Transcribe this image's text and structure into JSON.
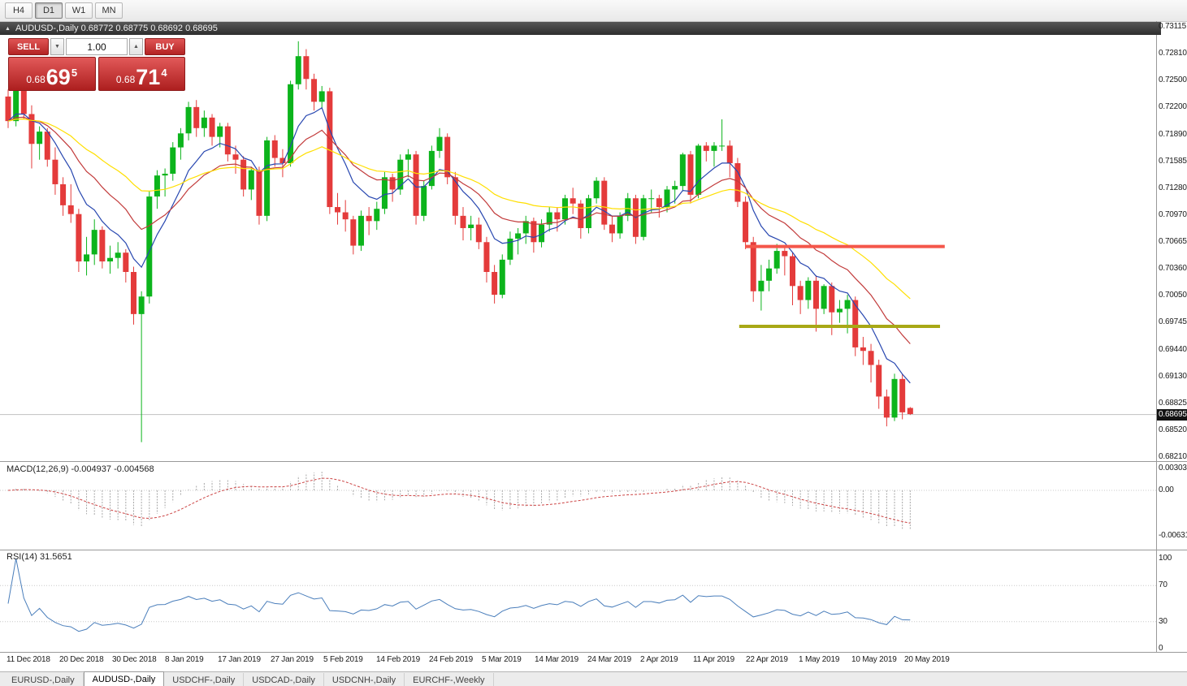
{
  "toolbar": {
    "timeframes": [
      {
        "label": "H4",
        "active": false
      },
      {
        "label": "D1",
        "active": true
      },
      {
        "label": "W1",
        "active": false
      },
      {
        "label": "MN",
        "active": false
      }
    ]
  },
  "chart": {
    "title_text": "AUDUSD-,Daily  0.68772 0.68775 0.68692 0.68695",
    "current_price_label": "0.68695",
    "price_axis": [
      "0.73115",
      "0.72810",
      "0.72500",
      "0.72200",
      "0.71890",
      "0.71585",
      "0.71280",
      "0.70970",
      "0.70665",
      "0.70360",
      "0.70050",
      "0.69745",
      "0.69440",
      "0.69130",
      "0.68825",
      "0.68520",
      "0.68210"
    ]
  },
  "trade_panel": {
    "sell_label": "SELL",
    "buy_label": "BUY",
    "volume": "1.00",
    "spin_down": "▼",
    "spin_up": "▲",
    "sell_price": {
      "prefix": "0.68",
      "big": "69",
      "sup": "5"
    },
    "buy_price": {
      "prefix": "0.68",
      "big": "71",
      "sup": "4"
    }
  },
  "colors": {
    "candle_up": "#0cb41c",
    "candle_down": "#e43b3b",
    "ma_fast_blue": "#2847b0",
    "ma_mid_red": "#c23b3b",
    "ma_slow_yellow": "#ffdf00",
    "resistance": "#f4564a",
    "support": "#a8a816",
    "macd_signal": "#cc4444",
    "macd_histogram": "#a8a8a8",
    "rsi_line": "#4a7ebb",
    "price_line": "#c0c0c0",
    "badge_bg": "#121212"
  },
  "tabs": [
    {
      "label": "EURUSD-,Daily",
      "active": false
    },
    {
      "label": "AUDUSD-,Daily",
      "active": true
    },
    {
      "label": "USDCHF-,Daily",
      "active": false
    },
    {
      "label": "USDCAD-,Daily",
      "active": false
    },
    {
      "label": "USDCNH-,Daily",
      "active": false
    },
    {
      "label": "EURCHF-,Weekly",
      "active": false
    }
  ],
  "chart_data": {
    "type": "candlestick",
    "symbol": "AUDUSD-",
    "timeframe": "Daily",
    "ohlc_display": {
      "open": "0.68772",
      "high": "0.68775",
      "low": "0.68692",
      "close": "0.68695"
    },
    "current_price": 0.68695,
    "ylim": [
      0.6821,
      0.73115
    ],
    "x_labels": [
      "11 Dec 2018",
      "20 Dec 2018",
      "30 Dec 2018",
      "8 Jan 2019",
      "17 Jan 2019",
      "27 Jan 2019",
      "5 Feb 2019",
      "14 Feb 2019",
      "24 Feb 2019",
      "5 Mar 2019",
      "14 Mar 2019",
      "24 Mar 2019",
      "2 Apr 2019",
      "11 Apr 2019",
      "22 Apr 2019",
      "1 May 2019",
      "10 May 2019",
      "20 May 2019"
    ],
    "candles": [
      [
        0.7232,
        0.724,
        0.7196,
        0.7204
      ],
      [
        0.7204,
        0.7246,
        0.7198,
        0.724
      ],
      [
        0.724,
        0.7244,
        0.7206,
        0.7212
      ],
      [
        0.7212,
        0.7222,
        0.715,
        0.7178
      ],
      [
        0.7178,
        0.7198,
        0.716,
        0.7192
      ],
      [
        0.7192,
        0.7196,
        0.7152,
        0.716
      ],
      [
        0.716,
        0.7174,
        0.712,
        0.7132
      ],
      [
        0.7132,
        0.714,
        0.7096,
        0.7108
      ],
      [
        0.7108,
        0.7132,
        0.7088,
        0.7098
      ],
      [
        0.7098,
        0.7104,
        0.7032,
        0.7044
      ],
      [
        0.7044,
        0.7072,
        0.7028,
        0.7052
      ],
      [
        0.7052,
        0.7092,
        0.704,
        0.708
      ],
      [
        0.708,
        0.7084,
        0.7036,
        0.7044
      ],
      [
        0.7044,
        0.7062,
        0.703,
        0.7048
      ],
      [
        0.7048,
        0.7066,
        0.7036,
        0.7054
      ],
      [
        0.7054,
        0.7058,
        0.702,
        0.7032
      ],
      [
        0.7032,
        0.7038,
        0.6972,
        0.6984
      ],
      [
        0.6984,
        0.701,
        0.6838,
        0.7004
      ],
      [
        0.7004,
        0.7124,
        0.6996,
        0.7118
      ],
      [
        0.7118,
        0.7148,
        0.7104,
        0.7142
      ],
      [
        0.7142,
        0.715,
        0.7118,
        0.7144
      ],
      [
        0.7144,
        0.718,
        0.7136,
        0.7174
      ],
      [
        0.7174,
        0.7196,
        0.716,
        0.719
      ],
      [
        0.719,
        0.7226,
        0.7182,
        0.722
      ],
      [
        0.722,
        0.7228,
        0.7186,
        0.7196
      ],
      [
        0.7196,
        0.7216,
        0.7186,
        0.7208
      ],
      [
        0.7208,
        0.7212,
        0.7176,
        0.7186
      ],
      [
        0.7186,
        0.7202,
        0.7174,
        0.7198
      ],
      [
        0.7198,
        0.7202,
        0.7158,
        0.7166
      ],
      [
        0.7166,
        0.7176,
        0.7144,
        0.716
      ],
      [
        0.716,
        0.7164,
        0.7118,
        0.7126
      ],
      [
        0.7126,
        0.7152,
        0.7114,
        0.7148
      ],
      [
        0.7148,
        0.7152,
        0.7086,
        0.7096
      ],
      [
        0.7096,
        0.7186,
        0.709,
        0.7182
      ],
      [
        0.7182,
        0.7188,
        0.7152,
        0.7162
      ],
      [
        0.7162,
        0.7172,
        0.714,
        0.7156
      ],
      [
        0.7156,
        0.725,
        0.7152,
        0.7246
      ],
      [
        0.7246,
        0.7295,
        0.724,
        0.7278
      ],
      [
        0.7278,
        0.7286,
        0.724,
        0.7252
      ],
      [
        0.7252,
        0.7258,
        0.7216,
        0.7226
      ],
      [
        0.7226,
        0.7244,
        0.7218,
        0.7238
      ],
      [
        0.7238,
        0.7242,
        0.7098,
        0.7106
      ],
      [
        0.7106,
        0.7122,
        0.7086,
        0.71
      ],
      [
        0.71,
        0.7114,
        0.7078,
        0.7092
      ],
      [
        0.7092,
        0.7096,
        0.7052,
        0.7062
      ],
      [
        0.7062,
        0.7102,
        0.7056,
        0.7096
      ],
      [
        0.7096,
        0.7106,
        0.7074,
        0.709
      ],
      [
        0.709,
        0.7112,
        0.708,
        0.7104
      ],
      [
        0.7104,
        0.7146,
        0.7098,
        0.714
      ],
      [
        0.714,
        0.7144,
        0.7112,
        0.7126
      ],
      [
        0.7126,
        0.7166,
        0.712,
        0.716
      ],
      [
        0.716,
        0.7172,
        0.714,
        0.7166
      ],
      [
        0.7166,
        0.717,
        0.7086,
        0.7096
      ],
      [
        0.7096,
        0.7136,
        0.709,
        0.713
      ],
      [
        0.713,
        0.7176,
        0.7126,
        0.717
      ],
      [
        0.717,
        0.7196,
        0.7162,
        0.7186
      ],
      [
        0.7186,
        0.719,
        0.7132,
        0.714
      ],
      [
        0.714,
        0.7146,
        0.7086,
        0.7096
      ],
      [
        0.7096,
        0.7106,
        0.7068,
        0.7082
      ],
      [
        0.7082,
        0.7096,
        0.7068,
        0.7086
      ],
      [
        0.7086,
        0.7094,
        0.7058,
        0.7066
      ],
      [
        0.7066,
        0.7072,
        0.702,
        0.7032
      ],
      [
        0.7032,
        0.704,
        0.6996,
        0.7006
      ],
      [
        0.7006,
        0.7052,
        0.7002,
        0.7046
      ],
      [
        0.7046,
        0.7078,
        0.704,
        0.707
      ],
      [
        0.707,
        0.7082,
        0.7052,
        0.7076
      ],
      [
        0.7076,
        0.7096,
        0.7064,
        0.709
      ],
      [
        0.709,
        0.7094,
        0.7054,
        0.7066
      ],
      [
        0.7066,
        0.7092,
        0.706,
        0.7086
      ],
      [
        0.7086,
        0.7106,
        0.7078,
        0.71
      ],
      [
        0.71,
        0.7106,
        0.7078,
        0.7092
      ],
      [
        0.7092,
        0.712,
        0.7086,
        0.7116
      ],
      [
        0.7116,
        0.7128,
        0.7098,
        0.711
      ],
      [
        0.711,
        0.7114,
        0.707,
        0.7082
      ],
      [
        0.7082,
        0.712,
        0.7076,
        0.7116
      ],
      [
        0.7116,
        0.714,
        0.711,
        0.7136
      ],
      [
        0.7136,
        0.714,
        0.708,
        0.7086
      ],
      [
        0.7086,
        0.7096,
        0.7066,
        0.7076
      ],
      [
        0.7076,
        0.71,
        0.707,
        0.7096
      ],
      [
        0.7096,
        0.7122,
        0.709,
        0.7116
      ],
      [
        0.7116,
        0.712,
        0.7064,
        0.7072
      ],
      [
        0.7072,
        0.712,
        0.7068,
        0.7116
      ],
      [
        0.7116,
        0.7126,
        0.71,
        0.7116
      ],
      [
        0.7116,
        0.712,
        0.7094,
        0.7106
      ],
      [
        0.7106,
        0.713,
        0.71,
        0.7126
      ],
      [
        0.7126,
        0.7136,
        0.711,
        0.713
      ],
      [
        0.713,
        0.7168,
        0.7124,
        0.7166
      ],
      [
        0.7166,
        0.717,
        0.711,
        0.712
      ],
      [
        0.712,
        0.7178,
        0.7116,
        0.7176
      ],
      [
        0.7176,
        0.718,
        0.7158,
        0.717
      ],
      [
        0.717,
        0.718,
        0.7152,
        0.7176
      ],
      [
        0.7176,
        0.7206,
        0.717,
        0.7176
      ],
      [
        0.7176,
        0.7182,
        0.714,
        0.7156
      ],
      [
        0.7156,
        0.7162,
        0.7106,
        0.7112
      ],
      [
        0.7112,
        0.7118,
        0.7058,
        0.7066
      ],
      [
        0.7066,
        0.7072,
        0.6998,
        0.701
      ],
      [
        0.701,
        0.704,
        0.6988,
        0.7022
      ],
      [
        0.7022,
        0.7046,
        0.701,
        0.7036
      ],
      [
        0.7036,
        0.7064,
        0.703,
        0.7056
      ],
      [
        0.7056,
        0.706,
        0.7028,
        0.705
      ],
      [
        0.705,
        0.7054,
        0.6994,
        0.7016
      ],
      [
        0.7016,
        0.7022,
        0.6984,
        0.7
      ],
      [
        0.7,
        0.7026,
        0.699,
        0.7022
      ],
      [
        0.7022,
        0.7028,
        0.6964,
        0.699
      ],
      [
        0.699,
        0.7018,
        0.6984,
        0.7016
      ],
      [
        0.7016,
        0.702,
        0.696,
        0.6986
      ],
      [
        0.6986,
        0.7,
        0.6974,
        0.699
      ],
      [
        0.699,
        0.7006,
        0.6962,
        0.7
      ],
      [
        0.7,
        0.7004,
        0.6936,
        0.6946
      ],
      [
        0.6946,
        0.6958,
        0.6926,
        0.6942
      ],
      [
        0.6942,
        0.695,
        0.6906,
        0.6926
      ],
      [
        0.6926,
        0.6932,
        0.6876,
        0.689
      ],
      [
        0.689,
        0.6898,
        0.6856,
        0.6866
      ],
      [
        0.6866,
        0.6916,
        0.6862,
        0.691
      ],
      [
        0.691,
        0.6916,
        0.6864,
        0.6872
      ],
      [
        0.6877,
        0.6878,
        0.6869,
        0.687
      ]
    ],
    "overlays": {
      "moving_averages": [
        {
          "period": 8,
          "type": "ema",
          "color_key": "ma_fast_blue"
        },
        {
          "period": 17,
          "type": "ema",
          "color_key": "ma_mid_red"
        },
        {
          "period": 34,
          "type": "ema",
          "color_key": "ma_slow_yellow"
        }
      ],
      "horizontal_lines": [
        {
          "name": "resistance",
          "price": 0.7061,
          "color_key": "resistance",
          "width": 4,
          "from_i": 94,
          "to_i": 119.4
        },
        {
          "name": "support",
          "price": 0.697,
          "color_key": "support",
          "width": 4,
          "from_i": 93.2,
          "to_i": 118.8
        }
      ]
    },
    "indicators": {
      "macd": {
        "title": "MACD(12,26,9) -0.004937 -0.004568",
        "params": [
          12,
          26,
          9
        ],
        "current_macd": -0.004937,
        "current_signal": -0.004568,
        "axis_ticks": [
          "0.003035",
          "0.00",
          "-0.00631"
        ]
      },
      "rsi": {
        "title": "RSI(14) 31.5651",
        "period": 14,
        "current": 31.5651,
        "axis_ticks": [
          "100",
          "70",
          "30",
          "0"
        ],
        "levels": [
          70,
          30
        ]
      }
    }
  }
}
